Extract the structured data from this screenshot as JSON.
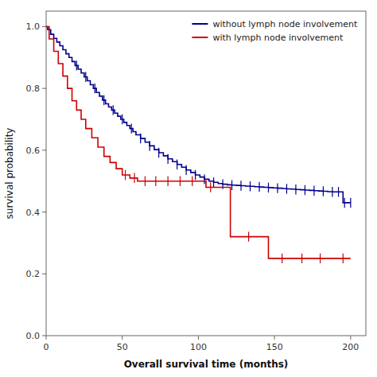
{
  "chart_data": {
    "type": "step",
    "xlabel": "Overall survival time (months)",
    "ylabel": "survival probability",
    "xlim": [
      0,
      210
    ],
    "ylim": [
      0.0,
      1.05
    ],
    "xticks": [
      0,
      50,
      100,
      150,
      200
    ],
    "yticks": [
      {
        "value": 0.0,
        "label": "0.0"
      },
      0.2,
      0.4,
      0.6,
      0.8,
      {
        "value": 1.0,
        "label": "1.0"
      }
    ],
    "grid": false,
    "legend": "upper right",
    "series": [
      {
        "name": "without lymph node involvement",
        "color": "#00008B",
        "x": [
          0,
          1,
          3,
          5,
          7,
          9,
          11,
          13,
          15,
          17,
          19,
          21,
          23,
          25,
          27,
          29,
          31,
          33,
          35,
          37,
          39,
          41,
          43,
          45,
          47,
          49,
          51,
          53,
          55,
          57,
          59,
          62,
          65,
          68,
          71,
          74,
          77,
          80,
          83,
          86,
          89,
          92,
          95,
          98,
          101,
          104,
          107,
          110,
          113,
          116,
          119,
          122,
          125,
          128,
          131,
          134,
          137,
          140,
          143,
          146,
          149,
          152,
          155,
          158,
          161,
          164,
          167,
          170,
          173,
          176,
          179,
          182,
          185,
          188,
          190,
          195,
          200
        ],
        "values": [
          1.0,
          0.99,
          0.975,
          0.962,
          0.95,
          0.938,
          0.925,
          0.912,
          0.9,
          0.887,
          0.874,
          0.862,
          0.85,
          0.837,
          0.825,
          0.812,
          0.8,
          0.787,
          0.775,
          0.762,
          0.75,
          0.74,
          0.73,
          0.72,
          0.71,
          0.7,
          0.69,
          0.68,
          0.67,
          0.66,
          0.65,
          0.638,
          0.626,
          0.614,
          0.602,
          0.592,
          0.582,
          0.572,
          0.563,
          0.554,
          0.545,
          0.536,
          0.528,
          0.52,
          0.513,
          0.506,
          0.5,
          0.496,
          0.492,
          0.49,
          0.488,
          0.487,
          0.486,
          0.485,
          0.484,
          0.483,
          0.482,
          0.481,
          0.48,
          0.479,
          0.478,
          0.477,
          0.476,
          0.475,
          0.474,
          0.473,
          0.472,
          0.471,
          0.47,
          0.469,
          0.468,
          0.467,
          0.466,
          0.465,
          0.465,
          0.43,
          0.43
        ],
        "censor_x": [
          20,
          26,
          32,
          38,
          44,
          50,
          56,
          62,
          68,
          74,
          80,
          86,
          92,
          98,
          104,
          110,
          116,
          122,
          128,
          134,
          140,
          146,
          152,
          158,
          164,
          170,
          176,
          182,
          188,
          192,
          196,
          200
        ],
        "censor_values": [
          0.874,
          0.837,
          0.8,
          0.762,
          0.73,
          0.7,
          0.67,
          0.638,
          0.614,
          0.592,
          0.572,
          0.554,
          0.536,
          0.52,
          0.506,
          0.496,
          0.49,
          0.487,
          0.485,
          0.483,
          0.481,
          0.479,
          0.477,
          0.475,
          0.473,
          0.471,
          0.469,
          0.467,
          0.465,
          0.465,
          0.43,
          0.43
        ]
      },
      {
        "name": "with lymph node involvement",
        "color": "#CC0000",
        "x": [
          0,
          2,
          5,
          8,
          11,
          14,
          17,
          20,
          23,
          26,
          30,
          34,
          38,
          42,
          46,
          50,
          55,
          60,
          65,
          70,
          75,
          80,
          85,
          90,
          95,
          100,
          105,
          120,
          121,
          130,
          145,
          146,
          160,
          195,
          200
        ],
        "values": [
          1.0,
          0.96,
          0.92,
          0.88,
          0.84,
          0.8,
          0.76,
          0.73,
          0.7,
          0.67,
          0.64,
          0.61,
          0.58,
          0.56,
          0.54,
          0.52,
          0.51,
          0.5,
          0.5,
          0.5,
          0.5,
          0.5,
          0.5,
          0.5,
          0.5,
          0.5,
          0.48,
          0.48,
          0.32,
          0.32,
          0.32,
          0.25,
          0.25,
          0.25,
          0.25
        ],
        "censor_x": [
          52,
          58,
          65,
          72,
          80,
          88,
          96,
          108,
          133,
          155,
          168,
          180,
          195
        ],
        "censor_values": [
          0.52,
          0.51,
          0.5,
          0.5,
          0.5,
          0.5,
          0.5,
          0.48,
          0.32,
          0.25,
          0.25,
          0.25,
          0.25
        ]
      }
    ]
  }
}
